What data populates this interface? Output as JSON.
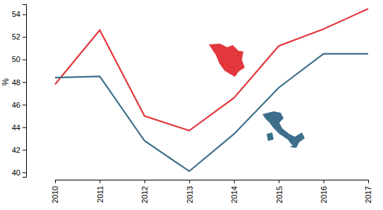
{
  "chart_data": {
    "type": "line",
    "y_label": "%",
    "categories": [
      "2010",
      "2011",
      "2012",
      "2013",
      "2014",
      "2015",
      "2016",
      "2017"
    ],
    "series": [
      {
        "color": "#e2383d",
        "values": [
          47.8,
          52.6,
          45.0,
          43.7,
          46.6,
          51.2,
          52.7,
          54.5
        ]
      },
      {
        "color": "#3d6e8c",
        "values": [
          48.4,
          48.5,
          42.8,
          40.1,
          43.4,
          47.5,
          50.5,
          50.5
        ]
      }
    ],
    "ylim": [
      39.6,
      54.9
    ],
    "yticks": [
      40,
      42,
      44,
      46,
      48,
      50,
      52,
      54
    ],
    "grid": false
  }
}
